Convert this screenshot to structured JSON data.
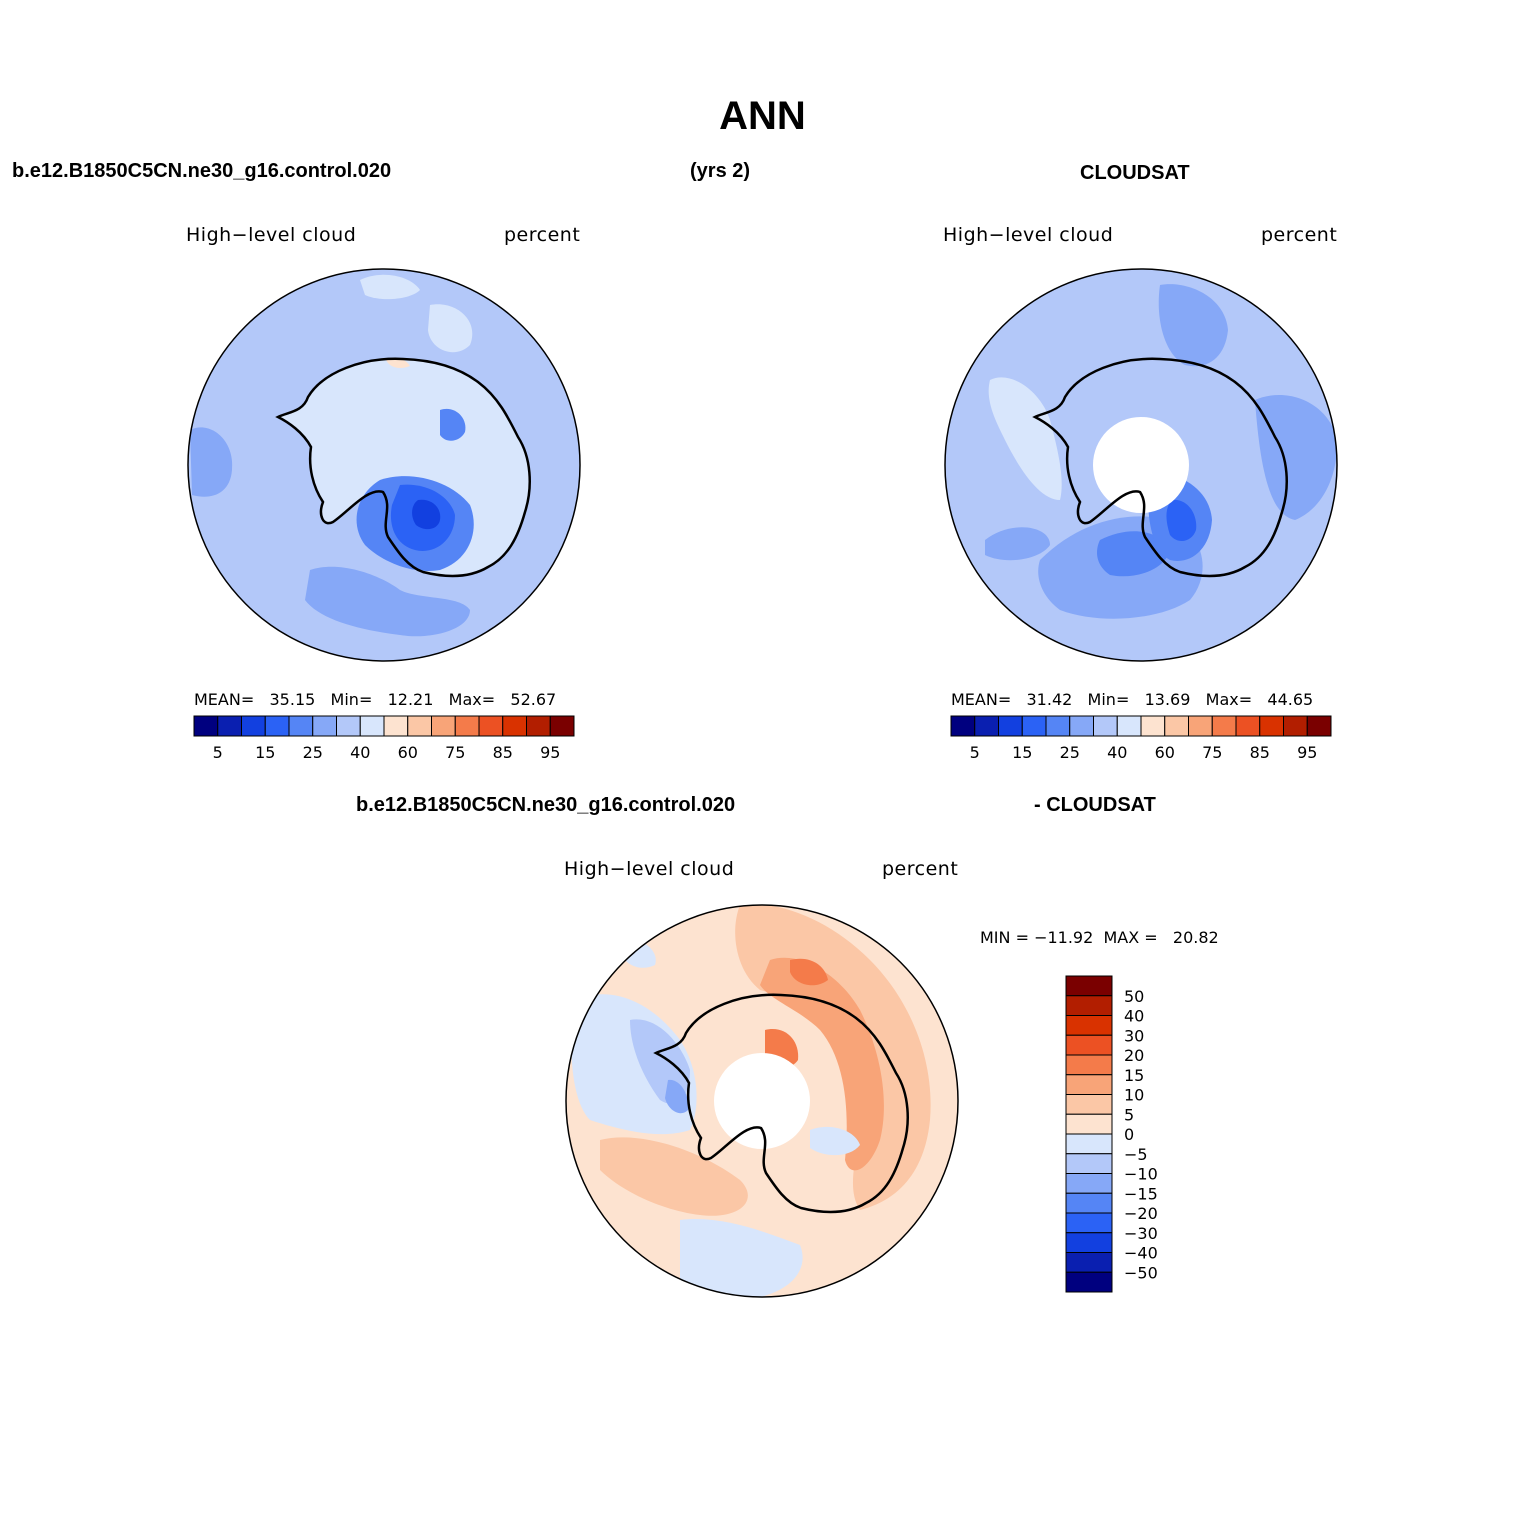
{
  "title": "ANN",
  "top_left_case": "b.e12.B1850C5CN.ne30_g16.control.020",
  "top_years": "(yrs 2)",
  "top_right_obs": "CLOUDSAT",
  "bottom_case": "b.e12.B1850C5CN.ne30_g16.control.020",
  "bottom_obs": "- CLOUDSAT",
  "panels": [
    {
      "variable": "High−level cloud",
      "units": "percent",
      "stats": "MEAN=   35.15   Min=   12.21   Max=   52.67"
    },
    {
      "variable": "High−level cloud",
      "units": "percent",
      "stats": "MEAN=   31.42   Min=   13.69   Max=   44.65"
    },
    {
      "variable": "High−level cloud",
      "units": "percent",
      "stats": "MIN = −11.92  MAX =   20.82"
    }
  ],
  "colorbar_main": {
    "labels": [
      "5",
      "15",
      "25",
      "40",
      "60",
      "75",
      "85",
      "95"
    ],
    "colors": [
      "#00007f",
      "#0a1fb0",
      "#1240e0",
      "#2b62f5",
      "#5585f5",
      "#86a8f7",
      "#b3c8f9",
      "#d8e6fc",
      "#fde3d0",
      "#fbc7a6",
      "#f8a478",
      "#f47b4a",
      "#ec5123",
      "#d93200",
      "#b21e00",
      "#7a0000"
    ]
  },
  "colorbar_diff": {
    "labels": [
      "50",
      "40",
      "30",
      "20",
      "15",
      "10",
      "5",
      "0",
      "−5",
      "−10",
      "−15",
      "−20",
      "−30",
      "−40",
      "−50"
    ],
    "colors": [
      "#7a0000",
      "#b21e00",
      "#d93200",
      "#ec5123",
      "#f47b4a",
      "#f8a478",
      "#fbc7a6",
      "#fde3d0",
      "#d8e6fc",
      "#b3c8f9",
      "#86a8f7",
      "#5585f5",
      "#2b62f5",
      "#1240e0",
      "#0a1fb0",
      "#00007f"
    ]
  }
}
